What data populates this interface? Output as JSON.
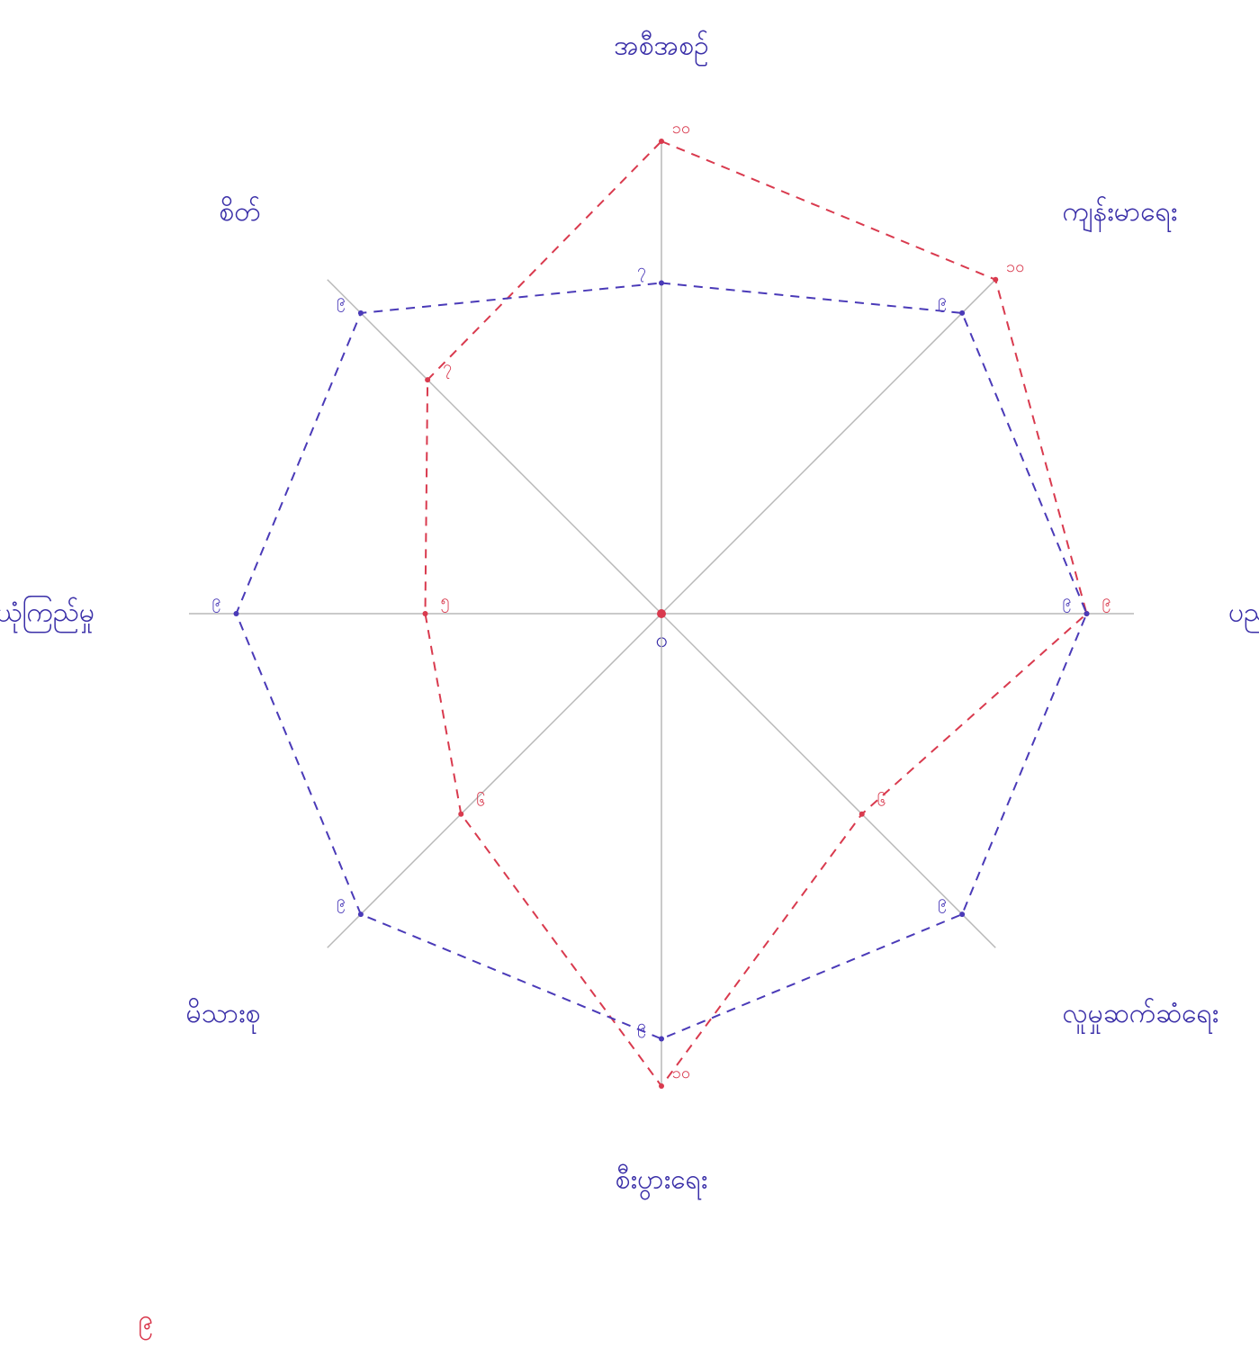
{
  "chart_data": {
    "type": "radar",
    "categories": [
      "အစီအစဉ်",
      "ကျန်းမာရေး",
      "ပညာရေး",
      "လူမှုဆက်ဆံရေး",
      "စီးပွားရေး",
      "မိသားစု",
      "ယုံကြည်မှု",
      "စိတ်"
    ],
    "rlim": [
      0,
      10
    ],
    "series": [
      {
        "name": "red",
        "color": "#d93a4e",
        "values": [
          10,
          10,
          9,
          6,
          10,
          6,
          5,
          7
        ],
        "value_labels": [
          "၁၀",
          "၁၀",
          "၉",
          "၆",
          "၁၀",
          "၆",
          "၅",
          "၇"
        ]
      },
      {
        "name": "blue",
        "color": "#4a3ab8",
        "values": [
          7,
          9,
          9,
          9,
          9,
          9,
          9,
          9
        ],
        "value_labels": [
          "၇",
          "၉",
          "၉",
          "၉",
          "၉",
          "၉",
          "၉",
          "၉"
        ]
      }
    ],
    "center_label": "၀",
    "page_number": "၉"
  }
}
